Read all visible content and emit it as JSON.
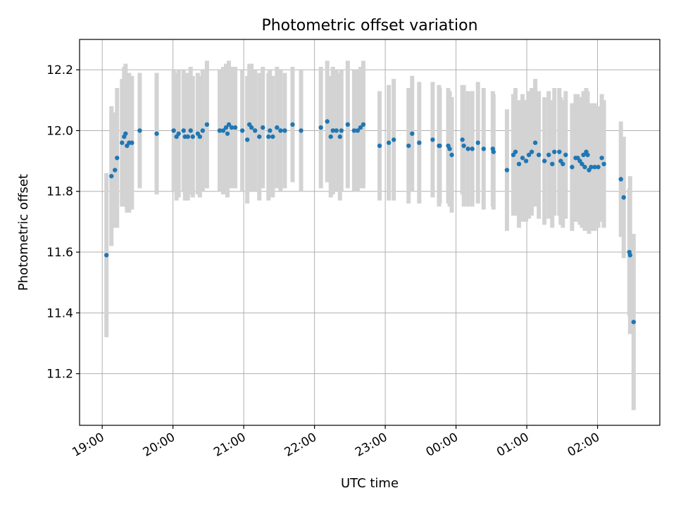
{
  "chart_data": {
    "type": "scatter",
    "title": "Photometric offset variation",
    "xlabel": "UTC time",
    "ylabel": "Photometric offset",
    "x_unit": "hours since 19:00 UTC",
    "xlim": [
      -0.32,
      7.88
    ],
    "ylim": [
      11.03,
      12.3
    ],
    "x_ticks": [
      {
        "value": 0,
        "label": "19:00"
      },
      {
        "value": 1,
        "label": "20:00"
      },
      {
        "value": 2,
        "label": "21:00"
      },
      {
        "value": 3,
        "label": "22:00"
      },
      {
        "value": 4,
        "label": "23:00"
      },
      {
        "value": 5,
        "label": "00:00"
      },
      {
        "value": 6,
        "label": "01:00"
      },
      {
        "value": 7,
        "label": "02:00"
      }
    ],
    "y_ticks": [
      {
        "value": 11.2,
        "label": "11.2"
      },
      {
        "value": 11.4,
        "label": "11.4"
      },
      {
        "value": 11.6,
        "label": "11.6"
      },
      {
        "value": 11.8,
        "label": "11.8"
      },
      {
        "value": 12.0,
        "label": "12.0"
      },
      {
        "value": 12.2,
        "label": "12.2"
      }
    ],
    "grid": true,
    "point_color": "#1f77b4",
    "errorbar_color": "#d3d3d3",
    "errorbar_halfwidth": 0.22,
    "points": [
      [
        0.06,
        11.59,
        0.27
      ],
      [
        0.13,
        11.85,
        0.23
      ],
      [
        0.18,
        11.87,
        0.19
      ],
      [
        0.21,
        11.91,
        0.23
      ],
      [
        0.28,
        11.96,
        0.21
      ],
      [
        0.31,
        11.98,
        0.23
      ],
      [
        0.33,
        11.99,
        0.23
      ],
      [
        0.35,
        11.95,
        0.22
      ],
      [
        0.38,
        11.96,
        0.23
      ],
      [
        0.42,
        11.96,
        0.22
      ],
      [
        0.53,
        12.0,
        0.19
      ],
      [
        0.77,
        11.99,
        0.2
      ],
      [
        1.01,
        12.0,
        0.2
      ],
      [
        1.05,
        11.98,
        0.21
      ],
      [
        1.08,
        11.99,
        0.21
      ],
      [
        1.15,
        12.0,
        0.2
      ],
      [
        1.17,
        11.98,
        0.21
      ],
      [
        1.21,
        11.98,
        0.21
      ],
      [
        1.25,
        12.0,
        0.21
      ],
      [
        1.28,
        11.98,
        0.2
      ],
      [
        1.35,
        11.99,
        0.2
      ],
      [
        1.38,
        11.98,
        0.2
      ],
      [
        1.42,
        12.0,
        0.2
      ],
      [
        1.48,
        12.02,
        0.21
      ],
      [
        1.66,
        12.0,
        0.2
      ],
      [
        1.71,
        12.0,
        0.21
      ],
      [
        1.75,
        12.01,
        0.21
      ],
      [
        1.77,
        11.99,
        0.21
      ],
      [
        1.79,
        12.02,
        0.21
      ],
      [
        1.83,
        12.01,
        0.2
      ],
      [
        1.88,
        12.01,
        0.2
      ],
      [
        1.98,
        12.0,
        0.2
      ],
      [
        2.05,
        11.97,
        0.21
      ],
      [
        2.08,
        12.02,
        0.2
      ],
      [
        2.11,
        12.01,
        0.21
      ],
      [
        2.16,
        12.0,
        0.2
      ],
      [
        2.22,
        11.98,
        0.21
      ],
      [
        2.27,
        12.01,
        0.2
      ],
      [
        2.35,
        11.98,
        0.21
      ],
      [
        2.37,
        12.0,
        0.2
      ],
      [
        2.41,
        11.98,
        0.2
      ],
      [
        2.47,
        12.01,
        0.2
      ],
      [
        2.52,
        12.0,
        0.2
      ],
      [
        2.58,
        12.0,
        0.19
      ],
      [
        2.69,
        12.02,
        0.19
      ],
      [
        2.81,
        12.0,
        0.2
      ],
      [
        3.09,
        12.01,
        0.2
      ],
      [
        3.18,
        12.03,
        0.2
      ],
      [
        3.23,
        11.98,
        0.2
      ],
      [
        3.26,
        12.0,
        0.21
      ],
      [
        3.31,
        12.0,
        0.2
      ],
      [
        3.36,
        11.98,
        0.21
      ],
      [
        3.38,
        12.0,
        0.2
      ],
      [
        3.47,
        12.02,
        0.21
      ],
      [
        3.56,
        12.0,
        0.2
      ],
      [
        3.61,
        12.0,
        0.2
      ],
      [
        3.65,
        12.01,
        0.2
      ],
      [
        3.69,
        12.02,
        0.21
      ],
      [
        3.92,
        11.95,
        0.18
      ],
      [
        4.05,
        11.96,
        0.19
      ],
      [
        4.12,
        11.97,
        0.2
      ],
      [
        4.33,
        11.95,
        0.19
      ],
      [
        4.38,
        11.99,
        0.19
      ],
      [
        4.48,
        11.96,
        0.2
      ],
      [
        4.67,
        11.97,
        0.19
      ],
      [
        4.76,
        11.95,
        0.2
      ],
      [
        4.77,
        11.95,
        0.19
      ],
      [
        4.89,
        11.95,
        0.19
      ],
      [
        4.91,
        11.94,
        0.19
      ],
      [
        4.94,
        11.92,
        0.19
      ],
      [
        5.09,
        11.97,
        0.18
      ],
      [
        5.11,
        11.95,
        0.2
      ],
      [
        5.17,
        11.94,
        0.19
      ],
      [
        5.23,
        11.94,
        0.19
      ],
      [
        5.31,
        11.96,
        0.2
      ],
      [
        5.39,
        11.94,
        0.2
      ],
      [
        5.52,
        11.94,
        0.19
      ],
      [
        5.53,
        11.93,
        0.19
      ],
      [
        5.72,
        11.87,
        0.2
      ],
      [
        5.81,
        11.92,
        0.2
      ],
      [
        5.84,
        11.93,
        0.21
      ],
      [
        5.89,
        11.89,
        0.21
      ],
      [
        5.94,
        11.91,
        0.21
      ],
      [
        5.99,
        11.9,
        0.2
      ],
      [
        6.03,
        11.92,
        0.21
      ],
      [
        6.07,
        11.93,
        0.21
      ],
      [
        6.12,
        11.96,
        0.21
      ],
      [
        6.17,
        11.92,
        0.21
      ],
      [
        6.25,
        11.9,
        0.21
      ],
      [
        6.31,
        11.92,
        0.21
      ],
      [
        6.36,
        11.89,
        0.21
      ],
      [
        6.39,
        11.93,
        0.21
      ],
      [
        6.46,
        11.93,
        0.21
      ],
      [
        6.48,
        11.9,
        0.21
      ],
      [
        6.51,
        11.89,
        0.21
      ],
      [
        6.55,
        11.92,
        0.21
      ],
      [
        6.64,
        11.88,
        0.21
      ],
      [
        6.69,
        11.91,
        0.21
      ],
      [
        6.72,
        11.91,
        0.21
      ],
      [
        6.75,
        11.9,
        0.21
      ],
      [
        6.78,
        11.89,
        0.21
      ],
      [
        6.8,
        11.92,
        0.21
      ],
      [
        6.82,
        11.88,
        0.21
      ],
      [
        6.84,
        11.93,
        0.21
      ],
      [
        6.86,
        11.92,
        0.21
      ],
      [
        6.88,
        11.87,
        0.21
      ],
      [
        6.91,
        11.88,
        0.21
      ],
      [
        6.96,
        11.88,
        0.21
      ],
      [
        7.01,
        11.88,
        0.2
      ],
      [
        7.06,
        11.91,
        0.21
      ],
      [
        7.09,
        11.89,
        0.21
      ],
      [
        7.33,
        11.84,
        0.19
      ],
      [
        7.37,
        11.78,
        0.2
      ],
      [
        7.45,
        11.6,
        0.21
      ],
      [
        7.46,
        11.59,
        0.26
      ],
      [
        7.51,
        11.37,
        0.29
      ]
    ],
    "point_fields": [
      "x",
      "y",
      "error"
    ]
  }
}
